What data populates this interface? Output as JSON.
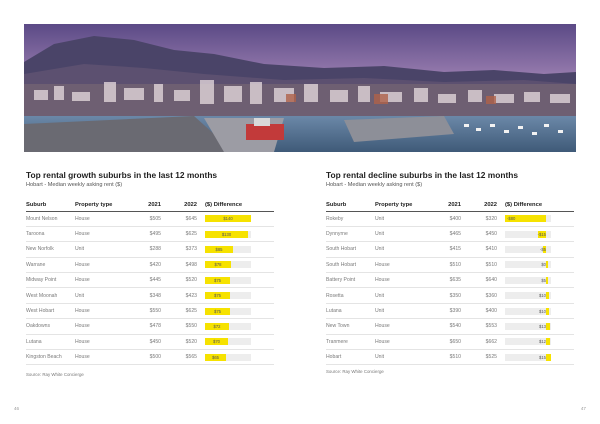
{
  "left": {
    "title": "Top rental growth suburbs in the last 12 months",
    "subtitle": "Hobart - Median weekly asking rent ($)",
    "headers": {
      "suburb": "Suburb",
      "type": "Property type",
      "y2021": "2021",
      "y2022": "2022",
      "diff": "($) Difference"
    },
    "rows": [
      {
        "suburb": "Mount Nelson",
        "type": "House",
        "y2021": "$505",
        "y2022": "$645",
        "diff": "$140",
        "diff_value": 140
      },
      {
        "suburb": "Taroona",
        "type": "House",
        "y2021": "$495",
        "y2022": "$625",
        "diff": "$130",
        "diff_value": 130
      },
      {
        "suburb": "New Norfolk",
        "type": "Unit",
        "y2021": "$288",
        "y2022": "$373",
        "diff": "$85",
        "diff_value": 85
      },
      {
        "suburb": "Warrane",
        "type": "House",
        "y2021": "$420",
        "y2022": "$498",
        "diff": "$78",
        "diff_value": 78
      },
      {
        "suburb": "Midway Point",
        "type": "House",
        "y2021": "$445",
        "y2022": "$520",
        "diff": "$75",
        "diff_value": 75
      },
      {
        "suburb": "West Moonah",
        "type": "Unit",
        "y2021": "$348",
        "y2022": "$423",
        "diff": "$75",
        "diff_value": 75
      },
      {
        "suburb": "West Hobart",
        "type": "House",
        "y2021": "$550",
        "y2022": "$625",
        "diff": "$75",
        "diff_value": 75
      },
      {
        "suburb": "Oakdowns",
        "type": "House",
        "y2021": "$478",
        "y2022": "$550",
        "diff": "$72",
        "diff_value": 72
      },
      {
        "suburb": "Lutana",
        "type": "House",
        "y2021": "$450",
        "y2022": "$520",
        "diff": "$70",
        "diff_value": 70
      },
      {
        "suburb": "Kingston Beach",
        "type": "House",
        "y2021": "$500",
        "y2022": "$565",
        "diff": "$65",
        "diff_value": 65
      }
    ],
    "source": "Source: Ray White Concierge",
    "page_number": "46"
  },
  "right": {
    "title": "Top rental decline suburbs in the last 12 months",
    "subtitle": "Hobart - Median weekly asking rent ($)",
    "headers": {
      "suburb": "Suburb",
      "type": "Property type",
      "y2021": "2021",
      "y2022": "2022",
      "diff": "($) Difference"
    },
    "rows": [
      {
        "suburb": "Rokeby",
        "type": "Unit",
        "y2021": "$400",
        "y2022": "$320",
        "diff": "-$80",
        "diff_value": -80
      },
      {
        "suburb": "Dynnyrne",
        "type": "Unit",
        "y2021": "$465",
        "y2022": "$450",
        "diff": "-$15",
        "diff_value": -15
      },
      {
        "suburb": "South Hobart",
        "type": "Unit",
        "y2021": "$415",
        "y2022": "$410",
        "diff": "-$5",
        "diff_value": -5
      },
      {
        "suburb": "South Hobart",
        "type": "House",
        "y2021": "$510",
        "y2022": "$510",
        "diff": "$0",
        "diff_value": 0
      },
      {
        "suburb": "Battery Point",
        "type": "House",
        "y2021": "$635",
        "y2022": "$640",
        "diff": "$5",
        "diff_value": 5
      },
      {
        "suburb": "Rosetta",
        "type": "Unit",
        "y2021": "$350",
        "y2022": "$360",
        "diff": "$10",
        "diff_value": 10
      },
      {
        "suburb": "Lutana",
        "type": "Unit",
        "y2021": "$390",
        "y2022": "$400",
        "diff": "$10",
        "diff_value": 10
      },
      {
        "suburb": "New Town",
        "type": "House",
        "y2021": "$540",
        "y2022": "$553",
        "diff": "$13",
        "diff_value": 13
      },
      {
        "suburb": "Tranmere",
        "type": "House",
        "y2021": "$650",
        "y2022": "$662",
        "diff": "$12",
        "diff_value": 12
      },
      {
        "suburb": "Hobart",
        "type": "Unit",
        "y2021": "$510",
        "y2022": "$525",
        "diff": "$15",
        "diff_value": 15
      }
    ],
    "source": "Source: Ray White Concierge",
    "page_number": "47"
  },
  "colors": {
    "bar_fill": "#f6e200",
    "bar_track": "#ededed",
    "title_text": "#1f1f1f"
  }
}
